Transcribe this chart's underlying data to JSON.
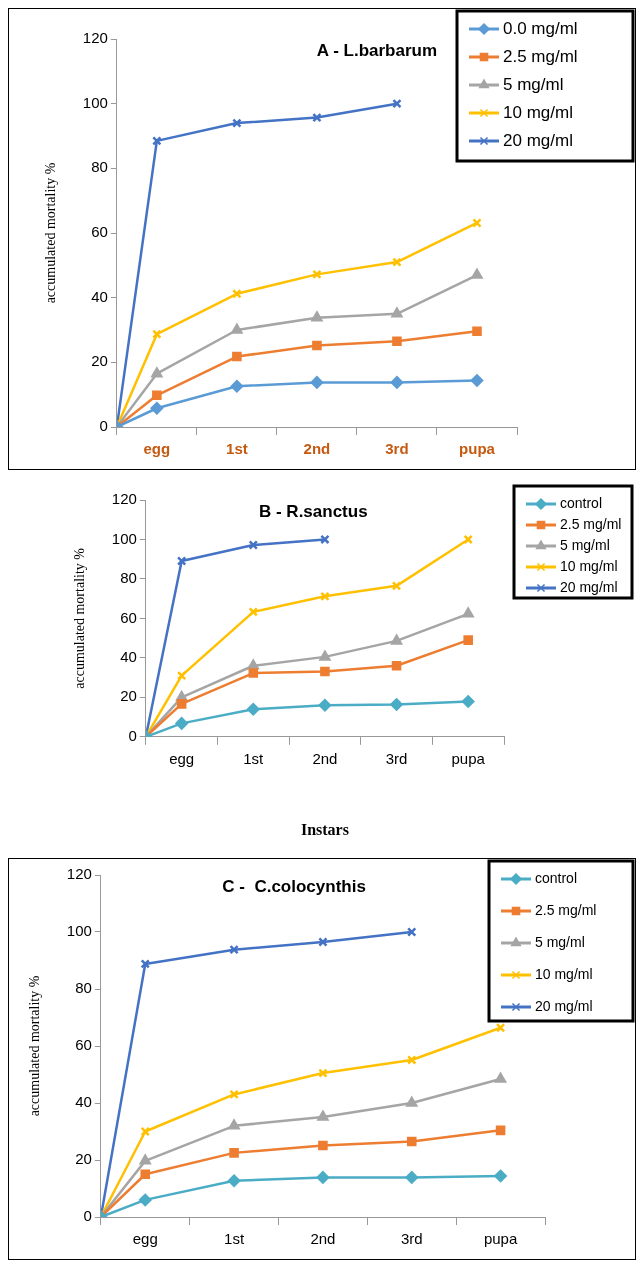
{
  "chart_data": [
    {
      "type": "line",
      "title": "A - L.barbarum",
      "ylabel": "accumulated mortality %",
      "x": [
        0,
        0.5,
        1.5,
        2.5,
        3.5,
        4.5
      ],
      "xlim": [
        0,
        5
      ],
      "xticks": [
        {
          "value": 0,
          "label": null
        },
        {
          "value": 0.5,
          "label": "egg"
        },
        {
          "value": 1,
          "label": null
        },
        {
          "value": 1.5,
          "label": "1st"
        },
        {
          "value": 2,
          "label": null
        },
        {
          "value": 2.5,
          "label": "2nd"
        },
        {
          "value": 3,
          "label": null
        },
        {
          "value": 3.5,
          "label": "3rd"
        },
        {
          "value": 4,
          "label": null
        },
        {
          "value": 4.5,
          "label": "pupa"
        },
        {
          "value": 5,
          "label": null
        }
      ],
      "ylim": [
        0,
        120
      ],
      "yticks": [
        0,
        20,
        40,
        60,
        80,
        100,
        120
      ],
      "grid": false,
      "legend": "top right",
      "series": [
        {
          "name": "0.0 mg/ml",
          "color": "#5b9bd5",
          "marker": "diamond",
          "values": [
            0,
            5.8,
            12.6,
            13.8,
            13.8,
            14.4
          ]
        },
        {
          "name": "2.5 mg/ml",
          "color": "#ed7d31",
          "marker": "square",
          "values": [
            0,
            9.8,
            21.8,
            25.2,
            26.5,
            29.6
          ]
        },
        {
          "name": "5 mg/ml",
          "color": "#a5a5a5",
          "marker": "triangle",
          "values": [
            0,
            16.5,
            30,
            33.8,
            35,
            47
          ]
        },
        {
          "name": "10 mg/ml",
          "color": "#ffc000",
          "marker": "cross",
          "values": [
            0,
            28.7,
            41.2,
            47.2,
            51,
            63.1
          ]
        },
        {
          "name": "20 mg/ml",
          "color": "#4472c4",
          "marker": "cross",
          "values": [
            0,
            88.5,
            94,
            95.7,
            100,
            null
          ]
        }
      ]
    },
    {
      "type": "line",
      "title": "B - R.sanctus",
      "ylabel": "accumulated mortality %",
      "xlabel": "Instars",
      "x": [
        0,
        0.5,
        1.5,
        2.5,
        3.5,
        4.5
      ],
      "xlim": [
        0,
        5
      ],
      "xticks": [
        {
          "value": 0,
          "label": null
        },
        {
          "value": 0.5,
          "label": "egg"
        },
        {
          "value": 1,
          "label": null
        },
        {
          "value": 1.5,
          "label": "1st"
        },
        {
          "value": 2,
          "label": null
        },
        {
          "value": 2.5,
          "label": "2nd"
        },
        {
          "value": 3,
          "label": null
        },
        {
          "value": 3.5,
          "label": "3rd"
        },
        {
          "value": 4,
          "label": null
        },
        {
          "value": 4.5,
          "label": "pupa"
        },
        {
          "value": 5,
          "label": null
        }
      ],
      "ylim": [
        0,
        120
      ],
      "yticks": [
        0,
        20,
        40,
        60,
        80,
        100,
        120
      ],
      "grid": false,
      "legend": "top right",
      "series": [
        {
          "name": "control",
          "color": "#4bacc6",
          "marker": "diamond",
          "values": [
            0,
            6.8,
            14,
            16,
            16.4,
            17.9
          ]
        },
        {
          "name": "2.5 mg/ml",
          "color": "#ed7d31",
          "marker": "square",
          "values": [
            0,
            16.7,
            32.3,
            33.1,
            36,
            49
          ]
        },
        {
          "name": "5 mg/ml",
          "color": "#a5a5a5",
          "marker": "triangle",
          "values": [
            0,
            20,
            36,
            40.5,
            48.6,
            62.3
          ]
        },
        {
          "name": "10 mg/ml",
          "color": "#ffc000",
          "marker": "cross",
          "values": [
            0,
            31,
            63.3,
            71.2,
            76.5,
            100
          ]
        },
        {
          "name": "20 mg/ml",
          "color": "#4472c4",
          "marker": "cross",
          "values": [
            0,
            89.1,
            97.2,
            100,
            null,
            null
          ]
        }
      ]
    },
    {
      "type": "line",
      "title": "C -  C.colocynthis",
      "ylabel": "accumulated mortality %",
      "x": [
        0,
        0.5,
        1.5,
        2.5,
        3.5,
        4.5
      ],
      "xlim": [
        0,
        5
      ],
      "xticks": [
        {
          "value": 0,
          "label": null
        },
        {
          "value": 0.5,
          "label": "egg"
        },
        {
          "value": 1,
          "label": null
        },
        {
          "value": 1.5,
          "label": "1st"
        },
        {
          "value": 2,
          "label": null
        },
        {
          "value": 2.5,
          "label": "2nd"
        },
        {
          "value": 3,
          "label": null
        },
        {
          "value": 3.5,
          "label": "3rd"
        },
        {
          "value": 4,
          "label": null
        },
        {
          "value": 4.5,
          "label": "pupa"
        },
        {
          "value": 5,
          "label": null
        }
      ],
      "ylim": [
        0,
        120
      ],
      "yticks": [
        0,
        20,
        40,
        60,
        80,
        100,
        120
      ],
      "grid": false,
      "legend": "top right",
      "series": [
        {
          "name": "control",
          "color": "#4bacc6",
          "marker": "diamond",
          "values": [
            0,
            6,
            12.7,
            13.9,
            13.9,
            14.4
          ]
        },
        {
          "name": "2.5 mg/ml",
          "color": "#ed7d31",
          "marker": "square",
          "values": [
            0,
            15,
            22.5,
            25.1,
            26.5,
            30.4
          ]
        },
        {
          "name": "5 mg/ml",
          "color": "#a5a5a5",
          "marker": "triangle",
          "values": [
            0,
            19.7,
            32,
            35.1,
            40,
            48.4
          ]
        },
        {
          "name": "10 mg/ml",
          "color": "#ffc000",
          "marker": "cross",
          "values": [
            0,
            30,
            43,
            50.5,
            55.1,
            66.4
          ]
        },
        {
          "name": "20 mg/ml",
          "color": "#4472c4",
          "marker": "cross",
          "values": [
            0,
            88.8,
            93.8,
            96.5,
            100,
            null
          ]
        }
      ]
    }
  ]
}
